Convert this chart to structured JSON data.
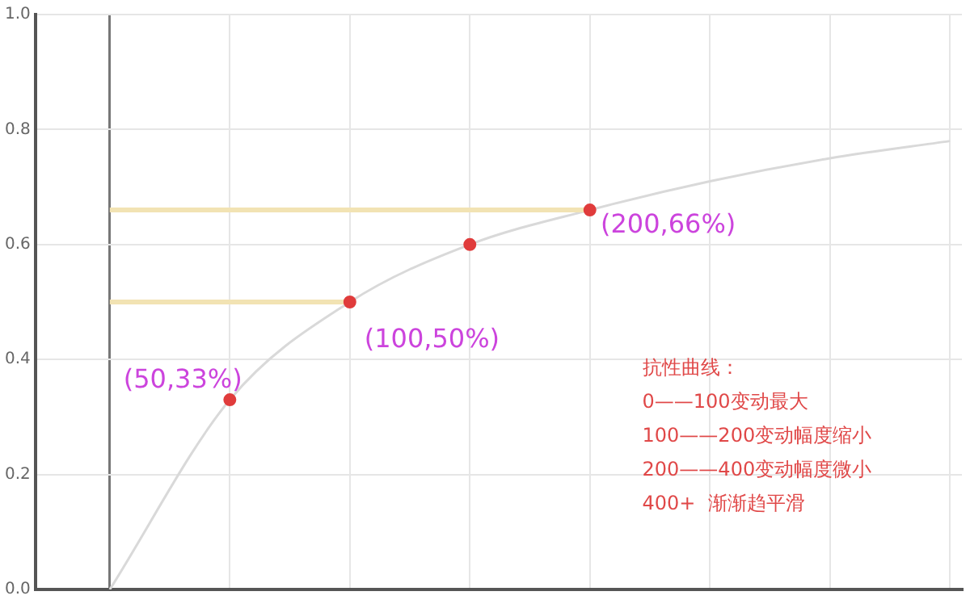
{
  "chart_data": {
    "type": "line",
    "categories": [
      null,
      null,
      null,
      null,
      null,
      null,
      null,
      null
    ],
    "ylim": [
      0,
      1
    ],
    "yticks": [
      {
        "value": 0,
        "label": "0.0"
      },
      0.2,
      0.4,
      0.6,
      0.8,
      {
        "value": 1,
        "label": "1.0"
      }
    ],
    "tick_labels": "y",
    "grid": true,
    "legend": false,
    "series": [
      {
        "color": "#f2e3b3",
        "values": [
          0.66,
          0.66,
          0.66,
          0.66,
          0.66,
          null,
          null,
          null
        ]
      },
      {
        "color": "#f2e3b3",
        "values": [
          0.5,
          0.5,
          0.5,
          null,
          null,
          null,
          null,
          null
        ]
      },
      {
        "color": "#d9d9d9",
        "values": [
          0,
          0.33,
          0.5,
          0.6,
          0.66,
          0.71,
          0.75,
          0.78
        ]
      },
      {
        "type": "scatter",
        "color": "#e03c3c",
        "marker": "circle",
        "values": [
          null,
          0.33,
          0.5,
          0.6,
          0.66,
          null,
          null,
          null
        ]
      }
    ],
    "annotations": [
      "(50,33%)",
      "(100,50%)",
      "(200,66%)",
      "抗性曲线：",
      "0——100变动最大",
      "100——200变动幅度缩小",
      "200——400变动幅度微小",
      "400+  渐渐趋平滑"
    ]
  }
}
